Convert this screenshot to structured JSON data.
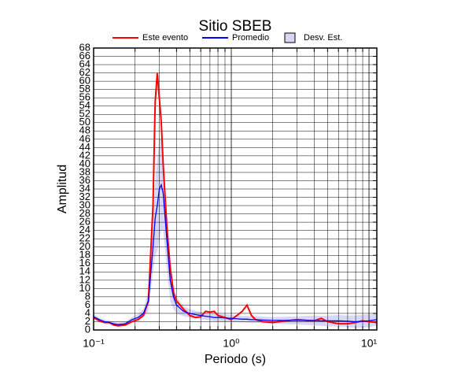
{
  "chart_data": {
    "type": "line",
    "title": "Sitio SBEB",
    "xlabel": "Periodo (s)",
    "ylabel": "Amplitud",
    "xscale": "log",
    "grid": true,
    "xlim": [
      0.1,
      11.4
    ],
    "ylim": [
      0,
      68
    ],
    "xticks": [
      {
        "value": 0.1,
        "label": "10⁻¹"
      },
      {
        "value": 1,
        "label": "10⁰"
      },
      {
        "value": 10,
        "label": "10¹"
      }
    ],
    "xminorticks": [
      0.2,
      0.3,
      0.4,
      0.5,
      0.6,
      0.7,
      0.8,
      0.9,
      2,
      3,
      4,
      5,
      6,
      7,
      8,
      9
    ],
    "yticks": [
      0,
      2,
      4,
      6,
      8,
      10,
      12,
      14,
      16,
      18,
      20,
      22,
      24,
      26,
      28,
      30,
      32,
      34,
      36,
      38,
      40,
      42,
      44,
      46,
      48,
      50,
      52,
      54,
      56,
      58,
      60,
      62,
      64,
      66,
      68
    ],
    "x": [
      0.1,
      0.11,
      0.12,
      0.13,
      0.14,
      0.15,
      0.17,
      0.19,
      0.21,
      0.23,
      0.25,
      0.27,
      0.28,
      0.29,
      0.3,
      0.31,
      0.32,
      0.34,
      0.36,
      0.38,
      0.4,
      0.45,
      0.5,
      0.55,
      0.6,
      0.65,
      0.7,
      0.75,
      0.8,
      0.9,
      1.0,
      1.1,
      1.2,
      1.3,
      1.4,
      1.5,
      1.7,
      2.0,
      2.5,
      3,
      3.5,
      4,
      4.5,
      5,
      6,
      7,
      8,
      9,
      10,
      11.4
    ],
    "series": [
      {
        "name": "Este evento",
        "color": "#ff0000",
        "values": [
          3.0,
          2.2,
          1.8,
          1.8,
          1.2,
          1.0,
          1.2,
          2.0,
          2.5,
          3.5,
          7,
          30,
          55,
          62,
          56,
          50,
          40,
          25,
          15,
          9,
          7,
          5,
          3.5,
          3,
          3.2,
          4.5,
          4.3,
          4.5,
          3.5,
          3,
          2.5,
          3.5,
          4.5,
          6,
          3.5,
          2.5,
          2,
          1.8,
          2.2,
          2.5,
          2.3,
          2.2,
          2.8,
          2,
          1.5,
          1.5,
          1.8,
          2.2,
          2,
          1.8
        ]
      },
      {
        "name": "Promedio",
        "color": "#0000ff",
        "values": [
          3.2,
          2.5,
          2,
          1.8,
          1.5,
          1.3,
          1.5,
          2.5,
          3,
          4,
          7,
          20,
          27,
          30,
          34,
          35,
          33,
          22,
          12,
          8,
          6,
          4.5,
          4,
          3.7,
          3.5,
          3.3,
          3.2,
          3,
          3,
          2.9,
          2.8,
          2.7,
          2.6,
          2.6,
          2.5,
          2.5,
          2.4,
          2.3,
          2.3,
          2.3,
          2.3,
          2.3,
          2.2,
          2.2,
          2.2,
          2.1,
          2,
          2.1,
          2.2,
          2.5
        ]
      },
      {
        "name": "Desv. Est.",
        "color": "#d8d8f6",
        "values": [
          0.6,
          0.5,
          0.5,
          0.5,
          0.5,
          0.5,
          0.5,
          0.6,
          0.8,
          1,
          2.5,
          6,
          9,
          11,
          12,
          11,
          9,
          7,
          5,
          3,
          2,
          1.2,
          1,
          0.9,
          0.9,
          0.9,
          0.9,
          0.9,
          0.9,
          0.9,
          0.8,
          0.8,
          0.8,
          0.8,
          0.8,
          0.8,
          0.8,
          0.8,
          0.9,
          1,
          1.1,
          1.2,
          1.2,
          1.3,
          1.4,
          1.4,
          1.5,
          1.6,
          1.5,
          1.4
        ]
      }
    ]
  }
}
